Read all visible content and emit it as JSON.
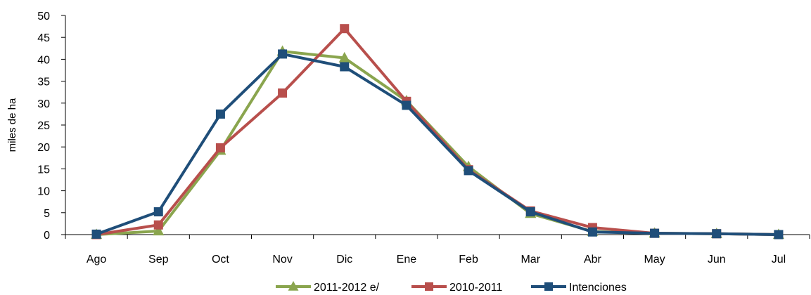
{
  "chart_data": {
    "type": "line",
    "title": "",
    "xlabel": "",
    "ylabel": "miles de ha",
    "ylim": [
      0,
      50
    ],
    "yticks": [
      0,
      5,
      10,
      15,
      20,
      25,
      30,
      35,
      40,
      45,
      50
    ],
    "categories": [
      "Ago",
      "Sep",
      "Oct",
      "Nov",
      "Dic",
      "Ene",
      "Feb",
      "Mar",
      "Abr",
      "May",
      "Jun",
      "Jul"
    ],
    "grid": false,
    "legend_position": "bottom",
    "series": [
      {
        "name": "2011-2012 e/",
        "color": "#8aa54e",
        "marker": "triangle",
        "values": [
          0,
          0.8,
          19.2,
          41.8,
          40.3,
          30.5,
          15.5,
          4.8,
          0.7,
          0.3,
          0.2,
          0
        ]
      },
      {
        "name": "2010-2011",
        "color": "#b84f4c",
        "marker": "square",
        "values": [
          0,
          2.2,
          19.8,
          32.3,
          47,
          30.4,
          14.8,
          5.4,
          1.6,
          0.3,
          0.2,
          0
        ]
      },
      {
        "name": "Intenciones",
        "color": "#1f4e79",
        "marker": "square",
        "values": [
          0.1,
          5.2,
          27.5,
          41.2,
          38.3,
          29.5,
          14.6,
          5.2,
          0.6,
          0.3,
          0.2,
          0
        ]
      }
    ]
  }
}
